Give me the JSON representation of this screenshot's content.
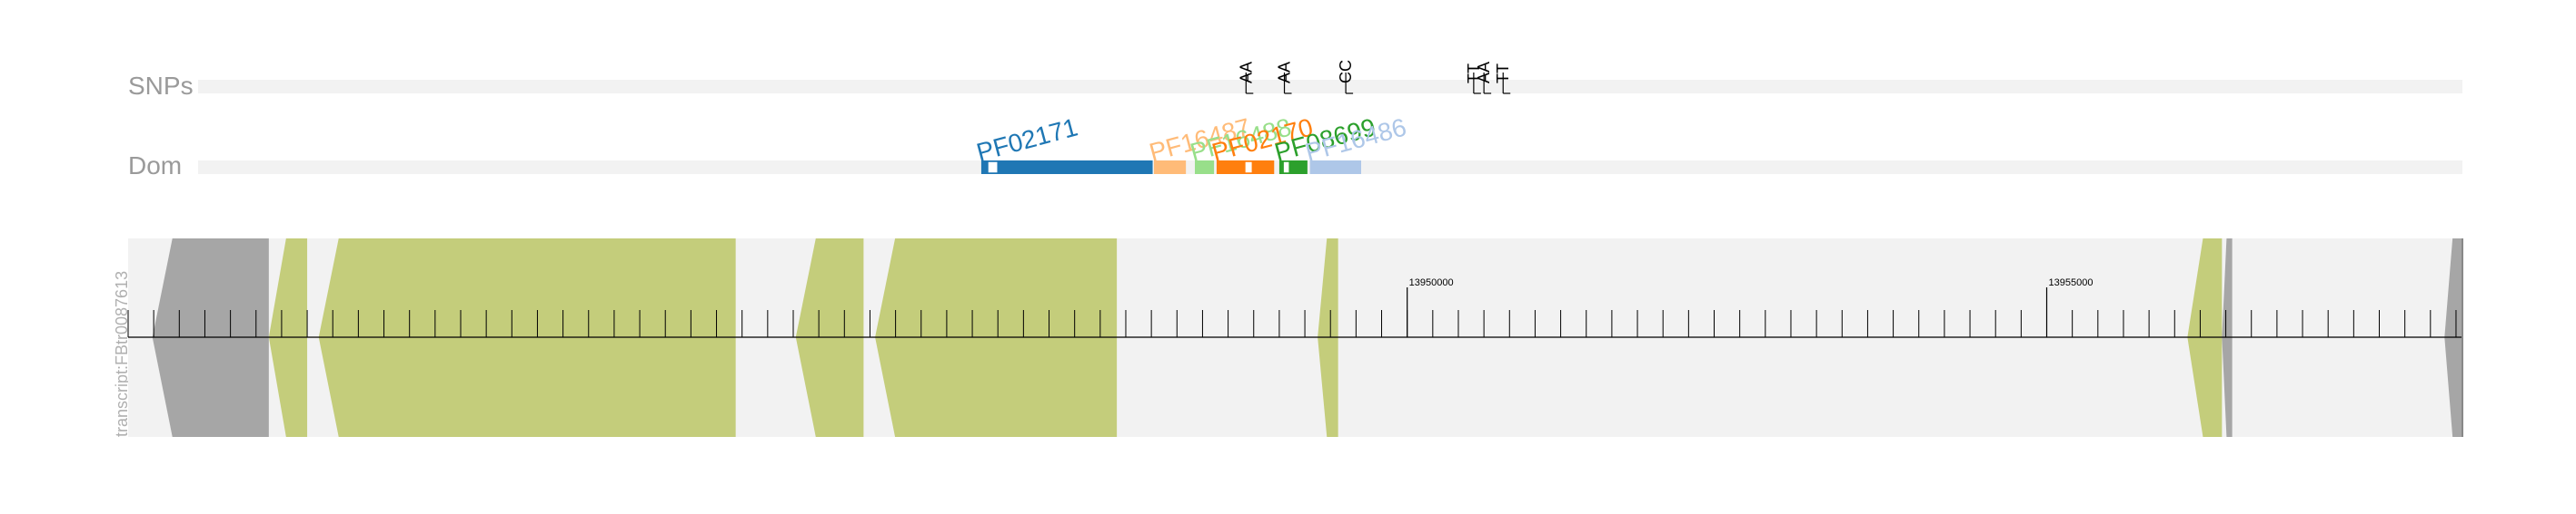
{
  "tracks": {
    "snps_label": "SNPs",
    "dom_label": "Dom",
    "transcript_label": "transcript:FBtr0087613"
  },
  "snps": [
    {
      "label": "AA",
      "pos": 13948740
    },
    {
      "label": "AA",
      "pos": 13949040
    },
    {
      "label": "CC",
      "pos": 13949520
    },
    {
      "label": "TT",
      "pos": 13950520
    },
    {
      "label": "AA",
      "pos": 13950600
    },
    {
      "label": "TT",
      "pos": 13950750
    }
  ],
  "domains": [
    {
      "name": "PF02171",
      "color": "#1f77b4",
      "start": 13946670,
      "end": 13948010,
      "label_angle": -15,
      "gaps": [
        [
          13946720,
          13946800
        ]
      ]
    },
    {
      "name": "PF16487",
      "color": "#ffbb78",
      "start": 13948020,
      "end": 13948270,
      "label_angle": -15,
      "gaps": []
    },
    {
      "name": "PF16488",
      "color": "#98df8a",
      "start": 13948340,
      "end": 13948490,
      "label_angle": -15,
      "gaps": []
    },
    {
      "name": "PF02170",
      "color": "#ff7f0e",
      "start": 13948510,
      "end": 13948960,
      "label_angle": -15,
      "gaps": [
        [
          13948730,
          13948790
        ]
      ]
    },
    {
      "name": "PF08699",
      "color": "#2ca02c",
      "start": 13949000,
      "end": 13949220,
      "label_angle": -15,
      "gaps": [
        [
          13949030,
          13949080
        ]
      ]
    },
    {
      "name": "PF16486",
      "color": "#aec7e8",
      "start": 13949240,
      "end": 13949640,
      "label_angle": -15,
      "gaps": []
    }
  ],
  "transcript": {
    "region": [
      13940000,
      13958250
    ],
    "utr_color": "#a6a6a6",
    "cds_color": "#c4cd7b",
    "background": "#f2f2f2",
    "segments": [
      {
        "type": "utr5",
        "start": 13940190,
        "end": 13941100
      },
      {
        "type": "cds",
        "start": 13941100,
        "end": 13941400
      },
      {
        "type": "cds",
        "start": 13941490,
        "end": 13944750
      },
      {
        "type": "cds",
        "start": 13945220,
        "end": 13945750
      },
      {
        "type": "cds",
        "start": 13945840,
        "end": 13947730
      },
      {
        "type": "cds",
        "start": 13949300,
        "end": 13949460
      },
      {
        "type": "cds",
        "start": 13956100,
        "end": 13956370
      },
      {
        "type": "utr3",
        "start": 13956370,
        "end": 13956450
      },
      {
        "type": "utr3",
        "start": 13958110,
        "end": 13958250
      }
    ],
    "ticks_minor_step": 1000,
    "tick_labels": [
      {
        "pos": 13950000,
        "label": "13950000"
      },
      {
        "pos": 13955000,
        "label": "13955000"
      }
    ]
  }
}
